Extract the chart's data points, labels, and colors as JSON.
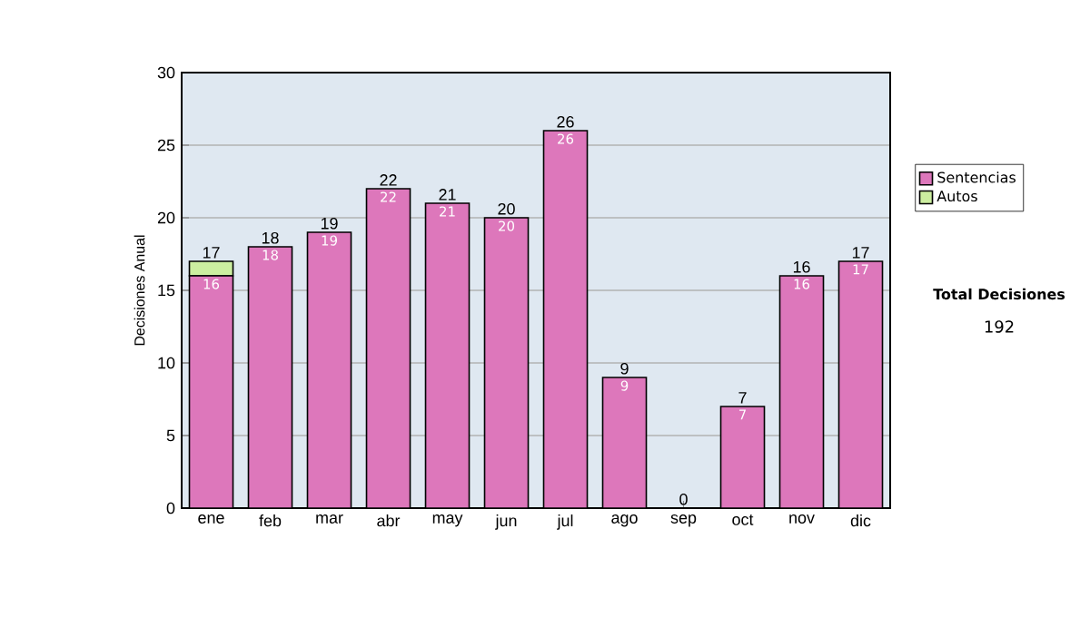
{
  "chart_data": {
    "type": "bar",
    "ylabel": "Decisiones Anual",
    "categories": [
      "ene",
      "feb",
      "mar",
      "abr",
      "may",
      "jun",
      "jul",
      "ago",
      "sep",
      "oct",
      "nov",
      "dic"
    ],
    "series": [
      {
        "name": "Sentencias",
        "color": "#dd77bb",
        "values": [
          16,
          18,
          19,
          22,
          21,
          20,
          26,
          9,
          0,
          7,
          16,
          17
        ],
        "value_labels": [
          "16",
          "18",
          "19",
          "22",
          "21",
          "20",
          "26",
          "9",
          null,
          "7",
          "16",
          "17"
        ]
      },
      {
        "name": "Autos",
        "color": "#cceea0",
        "values": [
          1,
          0,
          0,
          0,
          0,
          0,
          0,
          0,
          0,
          0,
          0,
          0
        ]
      }
    ],
    "stacked": true,
    "totals": [
      "17",
      "18",
      "19",
      "22",
      "21",
      "20",
      "26",
      "9",
      "0",
      "7",
      "16",
      "17"
    ],
    "ylim": [
      0,
      30
    ],
    "yticks": [
      0,
      5,
      10,
      15,
      20,
      25,
      30
    ],
    "grid": "y",
    "legend": "right",
    "annotations": [
      "Total Decisiones",
      "192"
    ]
  }
}
